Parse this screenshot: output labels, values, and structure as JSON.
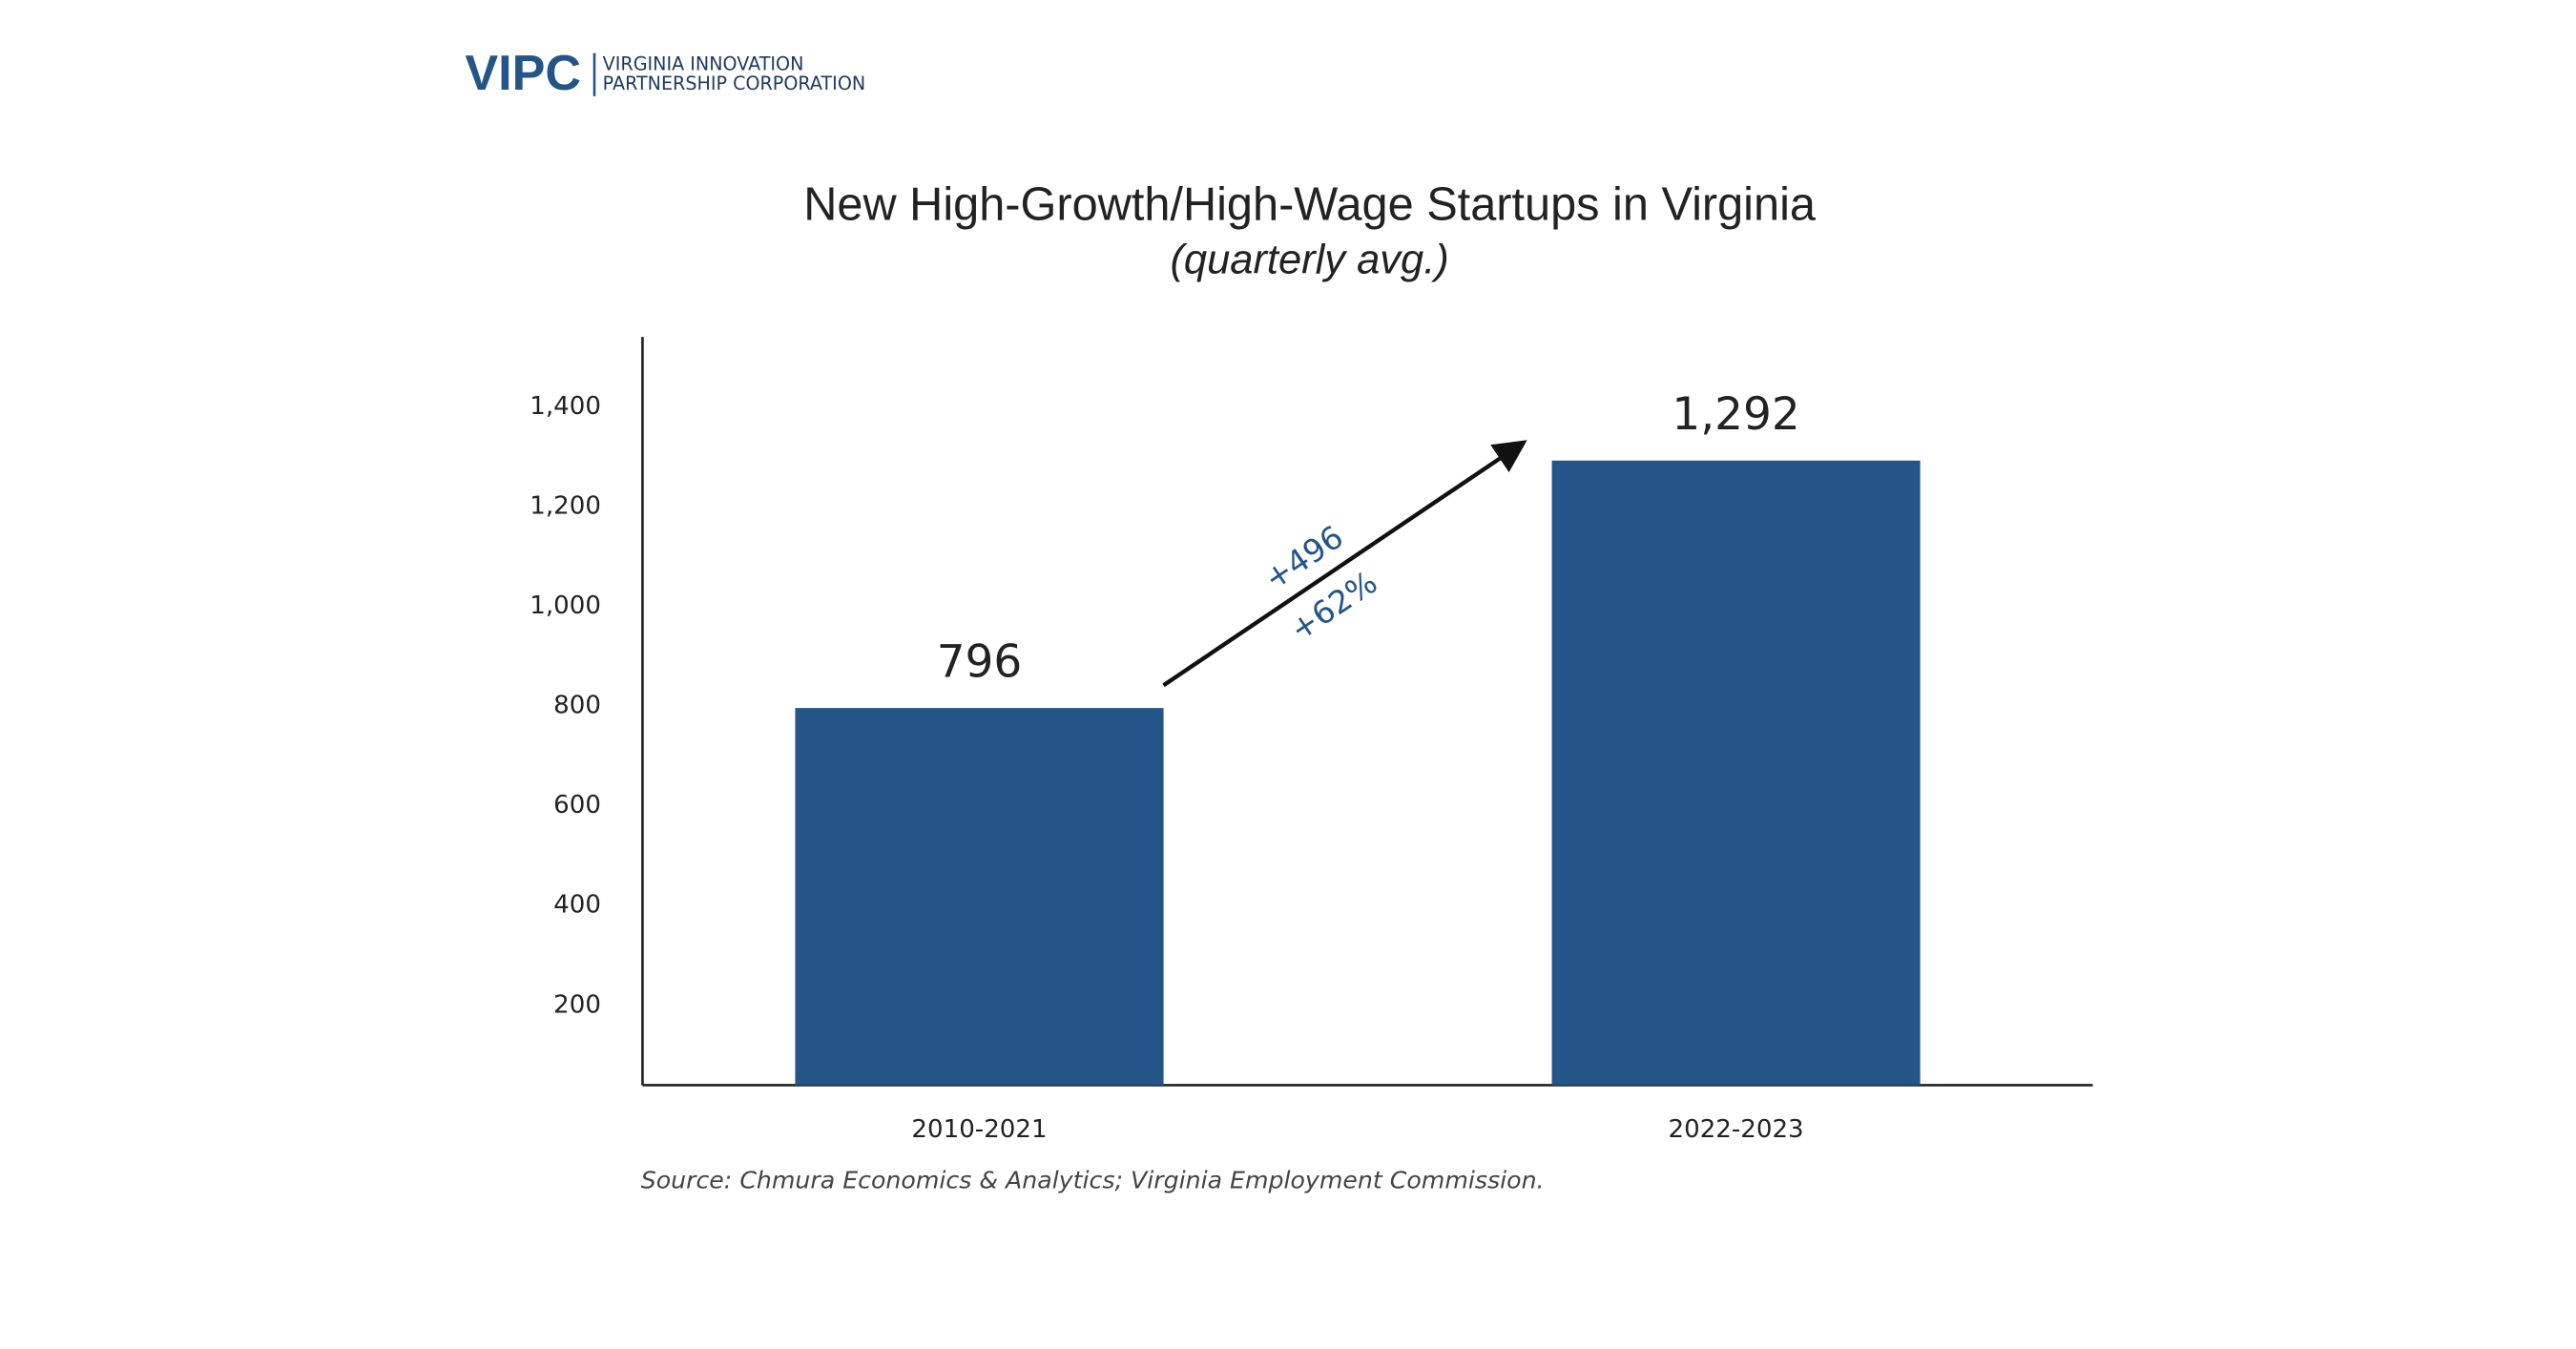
{
  "logo": {
    "mark": "VIPC",
    "line1": "VIRGINIA INNOVATION",
    "line2": "PARTNERSHIP CORPORATION"
  },
  "chart_data": {
    "type": "bar",
    "title": "New High-Growth/High-Wage Startups in Virginia",
    "subtitle": "(quarterly avg.)",
    "categories": [
      "2010-2021",
      "2022-2023"
    ],
    "values": [
      796,
      1292
    ],
    "value_labels": [
      "796",
      "1,292"
    ],
    "color": "#235589",
    "ylim": [
      40,
      1540
    ],
    "yticks": [
      200,
      400,
      600,
      800,
      {
        "value": 1000,
        "label": "1,000"
      },
      {
        "value": 1200,
        "label": "1,200"
      },
      {
        "value": 1400,
        "label": "1,400"
      }
    ],
    "grid": false,
    "annotations": [
      "+496",
      "+62%"
    ],
    "source": "Source: Chmura Economics & Analytics; Virginia Employment Commission."
  }
}
